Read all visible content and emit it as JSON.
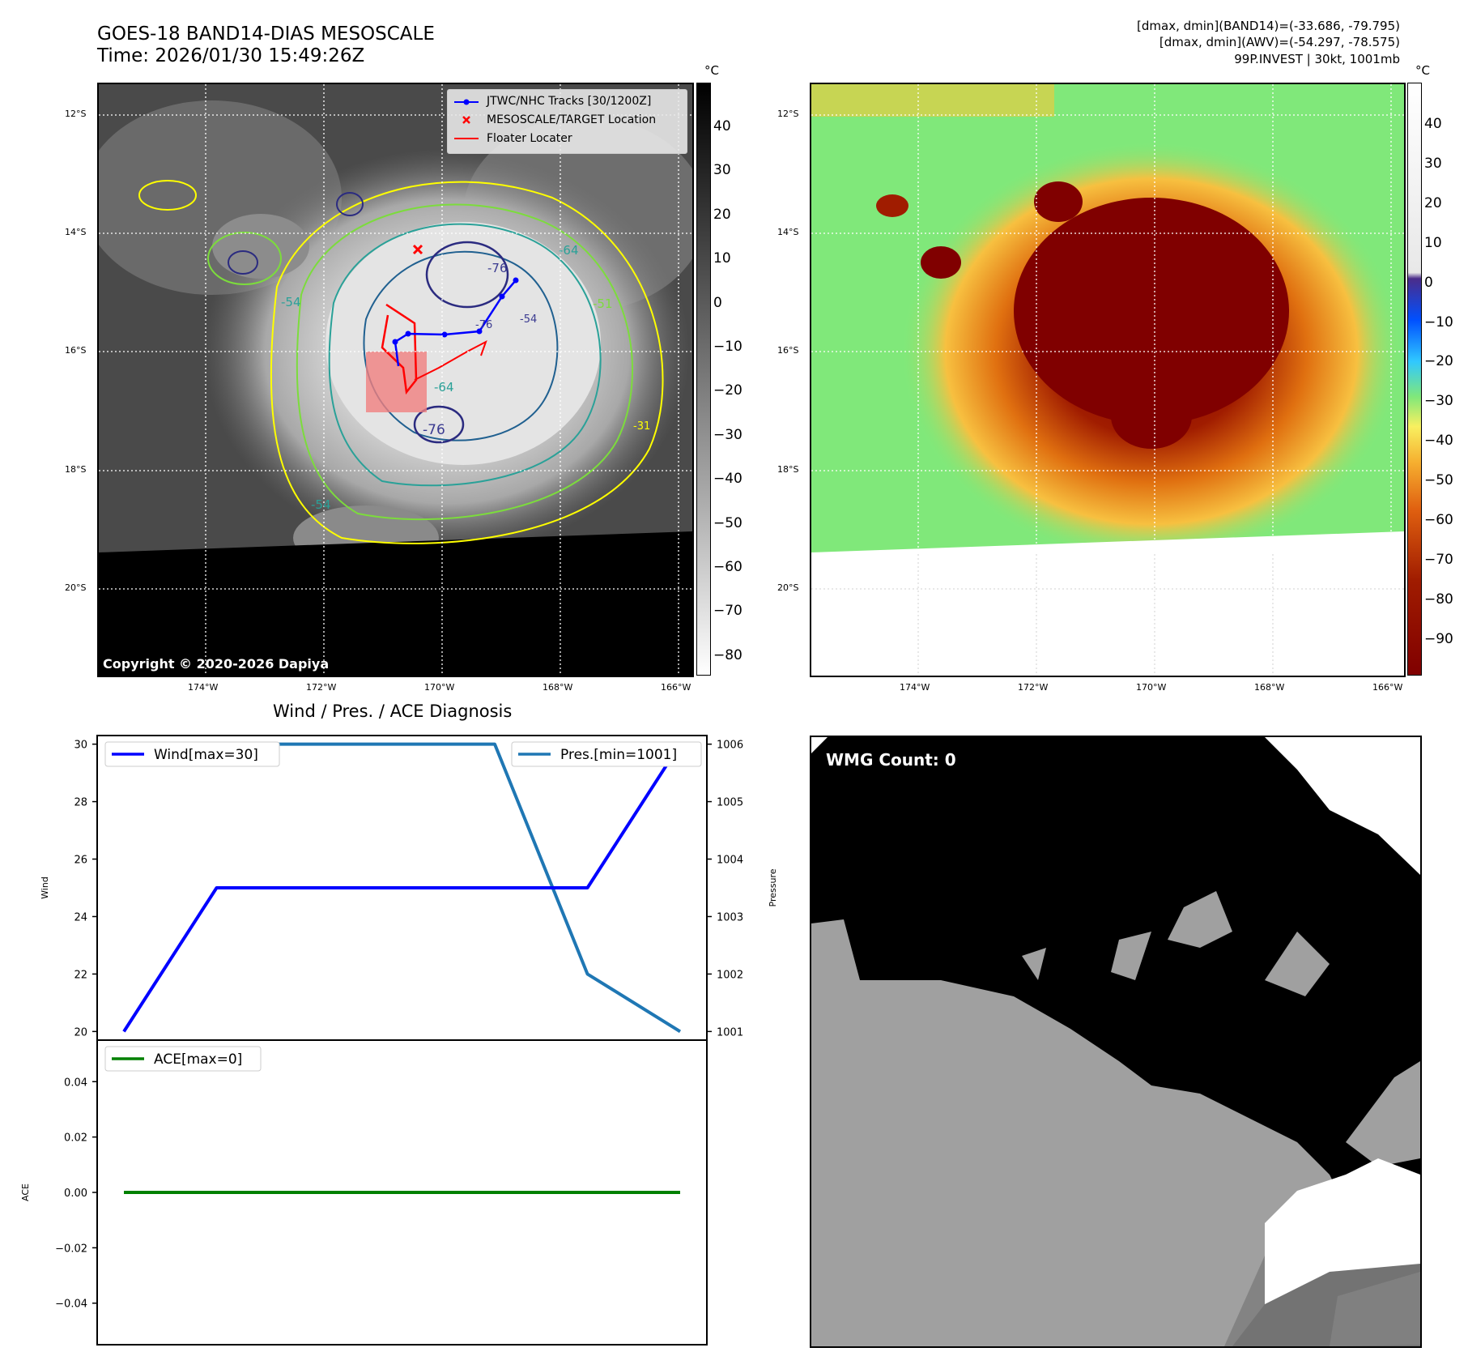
{
  "header": {
    "title_line1": "GOES-18 BAND14-DIAS MESOSCALE",
    "title_line2": "Time: 2026/01/30 15:49:26Z",
    "info_line1": "[dmax, dmin](BAND14)=(-33.686, -79.795)",
    "info_line2": "[dmax, dmin](AWV)=(-54.297, -78.575)",
    "info_line3": "99P.INVEST | 30kt, 1001mb"
  },
  "map_axes": {
    "lat_labels": [
      "12°S",
      "14°S",
      "16°S",
      "18°S",
      "20°S"
    ],
    "lon_labels": [
      "174°W",
      "172°W",
      "170°W",
      "168°W",
      "166°W"
    ]
  },
  "ir_panel": {
    "legend": [
      {
        "label": "JTWC/NHC Tracks [30/1200Z]",
        "color": "#0000ff",
        "marker": "line-dot"
      },
      {
        "label": "MESOSCALE/TARGET Location",
        "color": "#ff0000",
        "marker": "x"
      },
      {
        "label": "Floater Locater",
        "color": "#ff0000",
        "marker": "line"
      }
    ],
    "contour_labels": [
      "-76",
      "-64",
      "-64",
      "-76",
      "-54",
      "-54",
      "-51",
      "-54",
      "-76",
      "-31"
    ],
    "copyright": "Copyright © 2020-2026 Dapiya",
    "colorbar_unit": "°C",
    "colorbar_ticks": [
      "40",
      "30",
      "20",
      "10",
      "0",
      "−10",
      "−20",
      "−30",
      "−40",
      "−50",
      "−60",
      "−70",
      "−80"
    ]
  },
  "awv_panel": {
    "colorbar_unit": "°C",
    "colorbar_ticks": [
      "40",
      "30",
      "20",
      "10",
      "0",
      "−10",
      "−20",
      "−30",
      "−40",
      "−50",
      "−60",
      "−70",
      "−80",
      "−90"
    ]
  },
  "wmg_panel": {
    "label": "WMG Count: 0"
  },
  "chart_data": [
    {
      "type": "line",
      "title": "Wind / Pres. / ACE Diagnosis",
      "x": [
        0,
        1,
        2,
        3,
        4,
        5,
        6
      ],
      "ylabel": "Wind",
      "y2label": "Pressure",
      "ylim": [
        19.7,
        30.3
      ],
      "y2lim": [
        1000.85,
        1006.15
      ],
      "y_ticks": [
        "30",
        "28",
        "26",
        "24",
        "22",
        "20"
      ],
      "y2_ticks": [
        "1006",
        "1005",
        "1004",
        "1003",
        "1002",
        "1001"
      ],
      "series": [
        {
          "name": "Wind[max=30]",
          "axis": "left",
          "color": "#0000ff",
          "values": [
            20,
            25,
            25,
            25,
            25,
            25,
            30
          ]
        },
        {
          "name": "Pres.[min=1001]",
          "axis": "right",
          "color": "#1f77b4",
          "values": [
            1006,
            1006,
            1006,
            1006,
            1006,
            1002,
            1001
          ]
        }
      ]
    },
    {
      "type": "line",
      "title": "",
      "x": [
        0,
        1,
        2,
        3,
        4,
        5,
        6
      ],
      "ylabel": "ACE",
      "ylim": [
        -0.055,
        0.055
      ],
      "y_ticks": [
        "0.04",
        "0.02",
        "0.00",
        "−0.02",
        "−0.04"
      ],
      "series": [
        {
          "name": "ACE[max=0]",
          "color": "#008000",
          "values": [
            0,
            0,
            0,
            0,
            0,
            0,
            0
          ]
        }
      ]
    }
  ]
}
